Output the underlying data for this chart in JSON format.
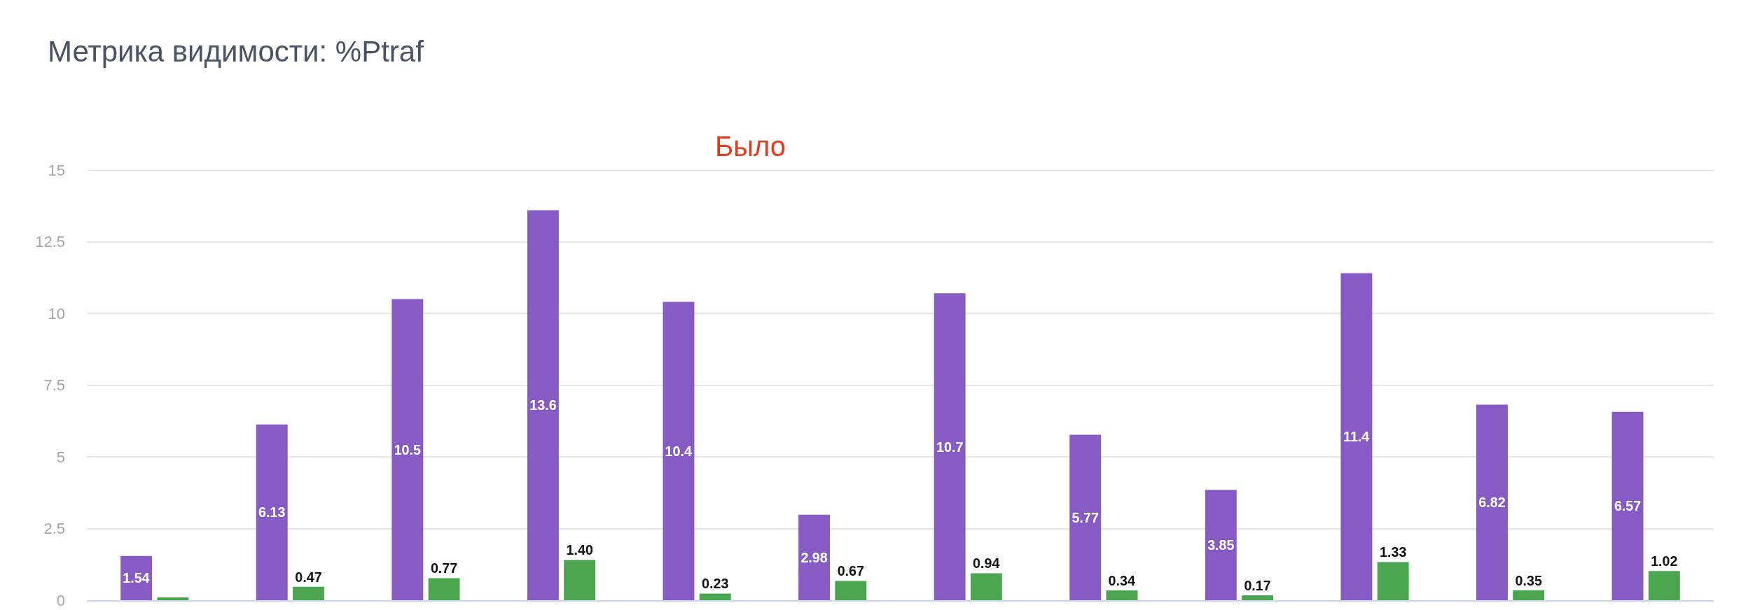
{
  "chart_data": {
    "type": "bar",
    "title": "Метрика видимости: %Ptraf",
    "annotations": [
      "Было"
    ],
    "categories": [
      null,
      null,
      null,
      null,
      null,
      null,
      null,
      null,
      null,
      null,
      null,
      null
    ],
    "series": [
      {
        "color": "#865bc4",
        "values": [
          1.54,
          6.13,
          10.5,
          13.6,
          10.4,
          2.98,
          10.7,
          5.77,
          3.85,
          11.4,
          6.82,
          6.57
        ],
        "value_labels": [
          "1.54",
          "6.13",
          "10.5",
          "13.6",
          "10.4",
          "2.98",
          "10.7",
          "5.77",
          "3.85",
          "11.4",
          "6.82",
          "6.57"
        ]
      },
      {
        "color": "#4ca64f",
        "values": [
          0.1,
          0.47,
          0.77,
          1.4,
          0.23,
          0.67,
          0.94,
          0.34,
          0.17,
          1.33,
          0.35,
          1.02
        ],
        "value_labels": [
          null,
          "0.47",
          "0.77",
          "1.40",
          "0.23",
          "0.67",
          "0.94",
          "0.34",
          "0.17",
          "1.33",
          "0.35",
          "1.02"
        ]
      }
    ],
    "ylim": [
      0,
      15
    ],
    "yticks": [
      0,
      2.5,
      5,
      7.5,
      10,
      12.5,
      15
    ],
    "grid": "y"
  }
}
